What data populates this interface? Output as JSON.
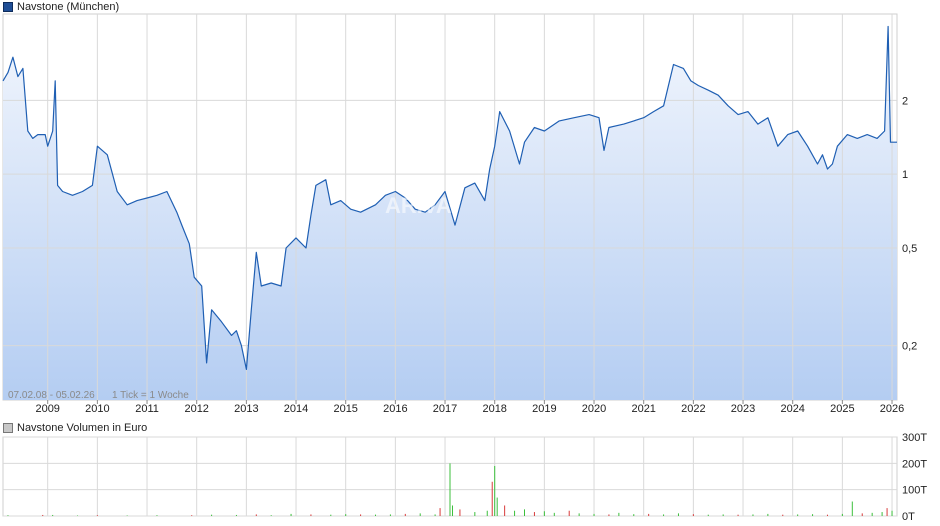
{
  "legend_price": "Navstone (München)",
  "legend_volume": "Navstone Volumen in Euro",
  "watermark": "ARIVA",
  "range_note": "07.02.08 - 05.02.26",
  "tick_note": "1 Tick = 1 Woche",
  "colors": {
    "line": "#1f5fb3",
    "fill_top": "#f2f6fd",
    "fill_bottom": "#b4cdf2",
    "grid": "#d9d9d9",
    "vol_up": "#3bbf3b",
    "vol_down": "#d83a3a"
  },
  "chart_data": [
    {
      "type": "area",
      "scale": "log",
      "ylim": [
        0.12,
        4.5
      ],
      "xlim": [
        2008.1,
        2026.1
      ],
      "y_ticks": [
        {
          "v": 0.2,
          "label": "0,2"
        },
        {
          "v": 0.5,
          "label": "0,5"
        },
        {
          "v": 1,
          "label": "1"
        },
        {
          "v": 2,
          "label": "2"
        }
      ],
      "x_ticks": [
        {
          "v": 2009,
          "label": "2009"
        },
        {
          "v": 2010,
          "label": "2010"
        },
        {
          "v": 2011,
          "label": "2011"
        },
        {
          "v": 2012,
          "label": "2012"
        },
        {
          "v": 2013,
          "label": "2013"
        },
        {
          "v": 2014,
          "label": "2014"
        },
        {
          "v": 2015,
          "label": "2015"
        },
        {
          "v": 2016,
          "label": "2016"
        },
        {
          "v": 2017,
          "label": "2017"
        },
        {
          "v": 2018,
          "label": "2018"
        },
        {
          "v": 2019,
          "label": "2019"
        },
        {
          "v": 2020,
          "label": "2020"
        },
        {
          "v": 2021,
          "label": "2021"
        },
        {
          "v": 2022,
          "label": "2022"
        },
        {
          "v": 2023,
          "label": "2023"
        },
        {
          "v": 2024,
          "label": "2024"
        },
        {
          "v": 2025,
          "label": "2025"
        },
        {
          "v": 2026,
          "label": "2026"
        }
      ],
      "series": [
        {
          "points": [
            [
              2008.1,
              2.4
            ],
            [
              2008.2,
              2.6
            ],
            [
              2008.3,
              3.0
            ],
            [
              2008.4,
              2.5
            ],
            [
              2008.5,
              2.7
            ],
            [
              2008.6,
              1.5
            ],
            [
              2008.7,
              1.4
            ],
            [
              2008.8,
              1.45
            ],
            [
              2008.95,
              1.45
            ],
            [
              2009.0,
              1.3
            ],
            [
              2009.1,
              1.5
            ],
            [
              2009.15,
              2.4
            ],
            [
              2009.2,
              0.9
            ],
            [
              2009.3,
              0.85
            ],
            [
              2009.5,
              0.82
            ],
            [
              2009.7,
              0.85
            ],
            [
              2009.9,
              0.9
            ],
            [
              2010.0,
              1.3
            ],
            [
              2010.2,
              1.2
            ],
            [
              2010.4,
              0.85
            ],
            [
              2010.6,
              0.75
            ],
            [
              2010.8,
              0.78
            ],
            [
              2011.0,
              0.8
            ],
            [
              2011.2,
              0.82
            ],
            [
              2011.4,
              0.85
            ],
            [
              2011.6,
              0.7
            ],
            [
              2011.7,
              0.62
            ],
            [
              2011.85,
              0.52
            ],
            [
              2011.95,
              0.38
            ],
            [
              2012.1,
              0.35
            ],
            [
              2012.2,
              0.17
            ],
            [
              2012.3,
              0.28
            ],
            [
              2012.5,
              0.25
            ],
            [
              2012.7,
              0.22
            ],
            [
              2012.8,
              0.23
            ],
            [
              2012.9,
              0.2
            ],
            [
              2013.0,
              0.16
            ],
            [
              2013.1,
              0.28
            ],
            [
              2013.2,
              0.48
            ],
            [
              2013.3,
              0.35
            ],
            [
              2013.5,
              0.36
            ],
            [
              2013.7,
              0.35
            ],
            [
              2013.8,
              0.5
            ],
            [
              2014.0,
              0.55
            ],
            [
              2014.2,
              0.5
            ],
            [
              2014.3,
              0.68
            ],
            [
              2014.4,
              0.9
            ],
            [
              2014.6,
              0.95
            ],
            [
              2014.7,
              0.75
            ],
            [
              2014.9,
              0.78
            ],
            [
              2015.1,
              0.72
            ],
            [
              2015.3,
              0.7
            ],
            [
              2015.6,
              0.75
            ],
            [
              2015.8,
              0.82
            ],
            [
              2016.0,
              0.85
            ],
            [
              2016.2,
              0.8
            ],
            [
              2016.4,
              0.72
            ],
            [
              2016.6,
              0.7
            ],
            [
              2016.8,
              0.75
            ],
            [
              2017.0,
              0.85
            ],
            [
              2017.2,
              0.62
            ],
            [
              2017.4,
              0.88
            ],
            [
              2017.6,
              0.92
            ],
            [
              2017.8,
              0.78
            ],
            [
              2017.9,
              1.05
            ],
            [
              2018.0,
              1.3
            ],
            [
              2018.1,
              1.8
            ],
            [
              2018.3,
              1.5
            ],
            [
              2018.5,
              1.1
            ],
            [
              2018.6,
              1.35
            ],
            [
              2018.8,
              1.55
            ],
            [
              2019.0,
              1.5
            ],
            [
              2019.3,
              1.65
            ],
            [
              2019.6,
              1.7
            ],
            [
              2019.9,
              1.75
            ],
            [
              2020.1,
              1.7
            ],
            [
              2020.2,
              1.25
            ],
            [
              2020.3,
              1.55
            ],
            [
              2020.6,
              1.6
            ],
            [
              2020.8,
              1.65
            ],
            [
              2021.0,
              1.7
            ],
            [
              2021.2,
              1.8
            ],
            [
              2021.4,
              1.9
            ],
            [
              2021.6,
              2.8
            ],
            [
              2021.8,
              2.7
            ],
            [
              2021.95,
              2.4
            ],
            [
              2022.1,
              2.3
            ],
            [
              2022.3,
              2.2
            ],
            [
              2022.5,
              2.1
            ],
            [
              2022.7,
              1.9
            ],
            [
              2022.9,
              1.75
            ],
            [
              2023.1,
              1.8
            ],
            [
              2023.3,
              1.6
            ],
            [
              2023.5,
              1.7
            ],
            [
              2023.7,
              1.3
            ],
            [
              2023.9,
              1.45
            ],
            [
              2024.1,
              1.5
            ],
            [
              2024.3,
              1.3
            ],
            [
              2024.5,
              1.1
            ],
            [
              2024.6,
              1.2
            ],
            [
              2024.7,
              1.05
            ],
            [
              2024.8,
              1.1
            ],
            [
              2024.9,
              1.3
            ],
            [
              2025.1,
              1.45
            ],
            [
              2025.3,
              1.4
            ],
            [
              2025.5,
              1.45
            ],
            [
              2025.7,
              1.4
            ],
            [
              2025.85,
              1.5
            ],
            [
              2025.92,
              4.0
            ],
            [
              2025.97,
              1.35
            ],
            [
              2026.1,
              1.35
            ]
          ]
        }
      ]
    },
    {
      "type": "bar",
      "title": "Navstone Volumen in Euro",
      "ylim": [
        0,
        300
      ],
      "y_ticks": [
        {
          "v": 0,
          "label": "0T"
        },
        {
          "v": 100,
          "label": "100T"
        },
        {
          "v": 200,
          "label": "200T"
        },
        {
          "v": 300,
          "label": "300T"
        }
      ],
      "spikes": [
        [
          2008.2,
          3
        ],
        [
          2008.9,
          4
        ],
        [
          2009.1,
          4
        ],
        [
          2009.6,
          2
        ],
        [
          2010.0,
          3
        ],
        [
          2010.6,
          2
        ],
        [
          2011.2,
          3
        ],
        [
          2011.9,
          3
        ],
        [
          2012.3,
          5
        ],
        [
          2012.8,
          4
        ],
        [
          2013.2,
          6
        ],
        [
          2013.5,
          3
        ],
        [
          2013.9,
          8
        ],
        [
          2014.3,
          6
        ],
        [
          2014.7,
          5
        ],
        [
          2015.0,
          7
        ],
        [
          2015.3,
          6
        ],
        [
          2015.6,
          5
        ],
        [
          2015.9,
          6
        ],
        [
          2016.2,
          8
        ],
        [
          2016.5,
          10
        ],
        [
          2016.8,
          6
        ],
        [
          2016.9,
          30
        ],
        [
          2017.1,
          200
        ],
        [
          2017.15,
          40
        ],
        [
          2017.3,
          25
        ],
        [
          2017.6,
          15
        ],
        [
          2017.85,
          20
        ],
        [
          2017.95,
          130
        ],
        [
          2018.0,
          190
        ],
        [
          2018.05,
          70
        ],
        [
          2018.2,
          40
        ],
        [
          2018.4,
          20
        ],
        [
          2018.6,
          25
        ],
        [
          2018.8,
          15
        ],
        [
          2019.0,
          18
        ],
        [
          2019.2,
          12
        ],
        [
          2019.5,
          20
        ],
        [
          2019.7,
          10
        ],
        [
          2020.0,
          8
        ],
        [
          2020.3,
          6
        ],
        [
          2020.5,
          12
        ],
        [
          2020.8,
          7
        ],
        [
          2021.1,
          8
        ],
        [
          2021.4,
          6
        ],
        [
          2021.7,
          10
        ],
        [
          2022.0,
          7
        ],
        [
          2022.3,
          5
        ],
        [
          2022.6,
          6
        ],
        [
          2022.9,
          5
        ],
        [
          2023.2,
          6
        ],
        [
          2023.5,
          8
        ],
        [
          2023.8,
          5
        ],
        [
          2024.1,
          6
        ],
        [
          2024.4,
          7
        ],
        [
          2024.7,
          5
        ],
        [
          2025.0,
          8
        ],
        [
          2025.2,
          55
        ],
        [
          2025.4,
          10
        ],
        [
          2025.6,
          12
        ],
        [
          2025.8,
          15
        ],
        [
          2025.9,
          30
        ],
        [
          2026.0,
          20
        ]
      ]
    }
  ]
}
